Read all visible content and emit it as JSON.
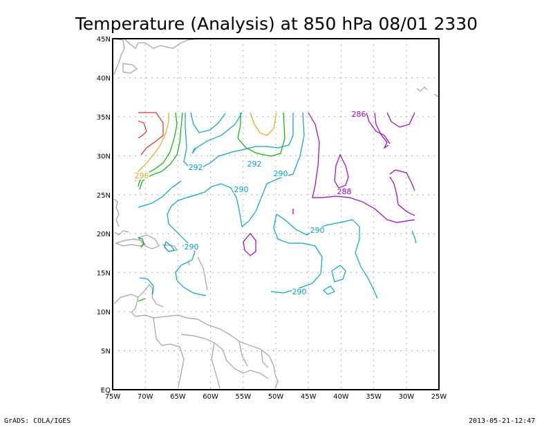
{
  "title": "Temperature (Analysis) at 850 hPa 08/01 2330",
  "footer": {
    "left": "GrADS: COLA/IGES",
    "right": "2013-05-21-12:47"
  },
  "axes": {
    "lat_ticks": [
      "45N",
      "40N",
      "35N",
      "30N",
      "25N",
      "20N",
      "15N",
      "10N",
      "5N",
      "EQ"
    ],
    "lon_ticks": [
      "75W",
      "70W",
      "65W",
      "60W",
      "55W",
      "50W",
      "45W",
      "40W",
      "35W",
      "30W",
      "25W"
    ]
  },
  "contour_labels": [
    {
      "text": "296",
      "color": "#e6a817"
    },
    {
      "text": "292",
      "color": "#00a5c8"
    },
    {
      "text": "292",
      "color": "#00a5c8"
    },
    {
      "text": "290",
      "color": "#00a5c8"
    },
    {
      "text": "290",
      "color": "#00a5c8"
    },
    {
      "text": "290",
      "color": "#00a5c8"
    },
    {
      "text": "290",
      "color": "#00a5c8"
    },
    {
      "text": "290",
      "color": "#00a5c8"
    },
    {
      "text": "286",
      "color": "#9b00c8"
    },
    {
      "text": "288",
      "color": "#9b00c8"
    }
  ],
  "colors": {
    "red": "#e0302a",
    "orange": "#e6a817",
    "green": "#00b400",
    "cyan": "#00a5c8",
    "purple": "#9b00c8",
    "coast": "#a0a0a0",
    "grid": "#b0b0b0"
  }
}
